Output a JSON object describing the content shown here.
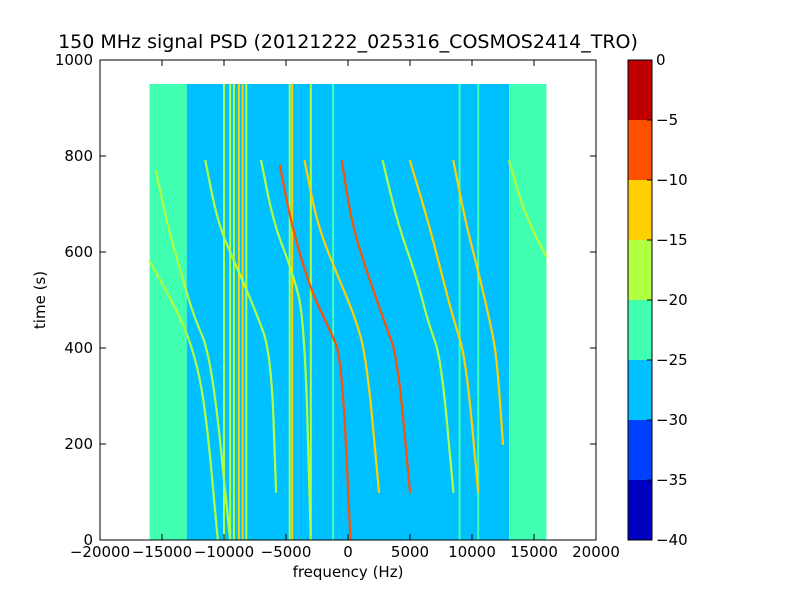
{
  "chart_data": {
    "type": "heatmap",
    "title": "150 MHz signal PSD (20121222_025316_COSMOS2414_TRO)",
    "xlabel": "frequency (Hz)",
    "ylabel": "time (s)",
    "xlim": [
      -20000,
      20000
    ],
    "ylim": [
      0,
      1000
    ],
    "x_ticks": [
      -20000,
      -15000,
      -10000,
      -5000,
      0,
      5000,
      10000,
      15000,
      20000
    ],
    "x_tick_labels": [
      "−20000",
      "−15000",
      "−10000",
      "−5000",
      "0",
      "5000",
      "10000",
      "15000",
      "20000"
    ],
    "y_ticks": [
      0,
      200,
      400,
      600,
      800,
      1000
    ],
    "y_tick_labels": [
      "0",
      "200",
      "400",
      "600",
      "800",
      "1000"
    ],
    "data_extent": {
      "x": [
        -16000,
        16000
      ],
      "y": [
        0,
        950
      ]
    },
    "grid": false,
    "colorbar": {
      "levels": [
        -40,
        -35,
        -30,
        -25,
        -20,
        -15,
        -10,
        -5,
        0
      ],
      "tick_labels": [
        "−40",
        "−35",
        "−30",
        "−25",
        "−20",
        "−15",
        "−10",
        "−5",
        "0"
      ],
      "colors": [
        "#0000c0",
        "#0040ff",
        "#00c0ff",
        "#40ffb0",
        "#b0ff40",
        "#ffd000",
        "#ff5000",
        "#c00000"
      ]
    },
    "background_bands": [
      {
        "x": [
          -16000,
          -13000
        ],
        "level": -22
      },
      {
        "x": [
          -13000,
          -4000
        ],
        "level": -27
      },
      {
        "x": [
          -4000,
          13000
        ],
        "level": -29
      },
      {
        "x": [
          13000,
          16000
        ],
        "level": -22
      }
    ],
    "vertical_lines": [
      {
        "x": -10000,
        "level": -20
      },
      {
        "x": -9500,
        "level": -17
      },
      {
        "x": -9200,
        "level": -18
      },
      {
        "x": -8800,
        "level": -15
      },
      {
        "x": -8500,
        "level": -15
      },
      {
        "x": -8200,
        "level": -17
      },
      {
        "x": -4700,
        "level": -18
      },
      {
        "x": -4500,
        "level": -15
      },
      {
        "x": -3000,
        "level": -17
      },
      {
        "x": -1200,
        "level": -22
      },
      {
        "x": 9000,
        "level": -22
      },
      {
        "x": 10500,
        "level": -22
      }
    ],
    "traces": [
      {
        "level": -17,
        "points": [
          [
            -16000,
            580
          ],
          [
            -14000,
            490
          ],
          [
            -12500,
            400
          ],
          [
            -11500,
            280
          ],
          [
            -10500,
            0
          ]
        ]
      },
      {
        "level": -17,
        "points": [
          [
            -15500,
            770
          ],
          [
            -14500,
            650
          ],
          [
            -13500,
            560
          ],
          [
            -12500,
            470
          ],
          [
            -11000,
            380
          ],
          [
            -9500,
            0
          ]
        ]
      },
      {
        "level": -17,
        "points": [
          [
            -11500,
            790
          ],
          [
            -10500,
            660
          ],
          [
            -9000,
            570
          ],
          [
            -7500,
            480
          ],
          [
            -6200,
            390
          ],
          [
            -5800,
            100
          ]
        ]
      },
      {
        "level": -17,
        "points": [
          [
            -7000,
            790
          ],
          [
            -6000,
            660
          ],
          [
            -4500,
            560
          ],
          [
            -3500,
            460
          ],
          [
            -3000,
            0
          ]
        ]
      },
      {
        "level": -10,
        "points": [
          [
            -5500,
            780
          ],
          [
            -4500,
            650
          ],
          [
            -3000,
            520
          ],
          [
            -1500,
            440
          ],
          [
            -500,
            380
          ],
          [
            200,
            0
          ]
        ]
      },
      {
        "level": -12,
        "points": [
          [
            -3500,
            790
          ],
          [
            -2500,
            660
          ],
          [
            -1000,
            560
          ],
          [
            500,
            470
          ],
          [
            1500,
            380
          ],
          [
            2500,
            100
          ]
        ]
      },
      {
        "level": -10,
        "points": [
          [
            -500,
            790
          ],
          [
            300,
            660
          ],
          [
            1500,
            560
          ],
          [
            3000,
            450
          ],
          [
            4000,
            380
          ],
          [
            5000,
            100
          ]
        ]
      },
      {
        "level": -17,
        "points": [
          [
            2800,
            790
          ],
          [
            4000,
            660
          ],
          [
            5500,
            550
          ],
          [
            6500,
            450
          ],
          [
            7500,
            380
          ],
          [
            8500,
            100
          ]
        ]
      },
      {
        "level": -12,
        "points": [
          [
            5000,
            790
          ],
          [
            6500,
            660
          ],
          [
            7500,
            560
          ],
          [
            8500,
            460
          ],
          [
            9500,
            380
          ],
          [
            10500,
            100
          ]
        ]
      },
      {
        "level": -12,
        "points": [
          [
            8500,
            790
          ],
          [
            9500,
            660
          ],
          [
            10500,
            560
          ],
          [
            11500,
            450
          ],
          [
            12000,
            380
          ],
          [
            12500,
            200
          ]
        ]
      },
      {
        "level": -17,
        "points": [
          [
            13000,
            790
          ],
          [
            14000,
            700
          ],
          [
            15000,
            640
          ],
          [
            16000,
            590
          ]
        ]
      }
    ]
  }
}
